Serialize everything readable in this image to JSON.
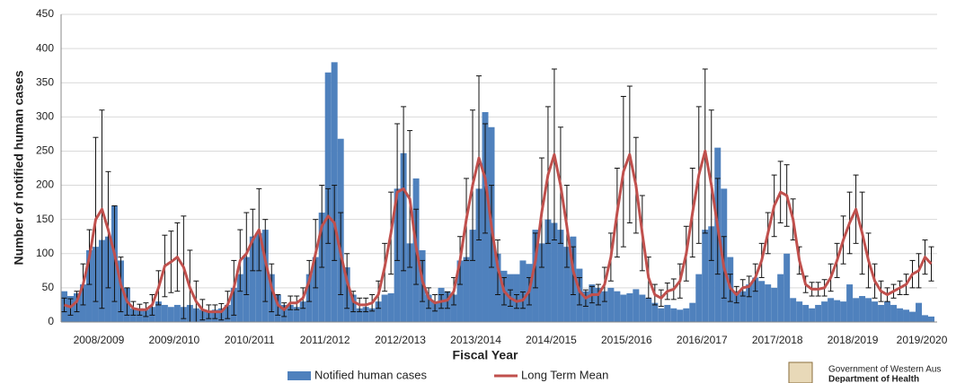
{
  "chart_data": {
    "type": "bar",
    "categories": [
      null,
      null,
      null,
      null,
      null,
      null,
      "2008/2009",
      null,
      null,
      null,
      null,
      null,
      null,
      null,
      null,
      null,
      null,
      null,
      "2009/2010",
      null,
      null,
      null,
      null,
      null,
      null,
      null,
      null,
      null,
      null,
      null,
      "2010/2011",
      null,
      null,
      null,
      null,
      null,
      null,
      null,
      null,
      null,
      null,
      null,
      "2011/2012",
      null,
      null,
      null,
      null,
      null,
      null,
      null,
      null,
      null,
      null,
      null,
      "2012/2013",
      null,
      null,
      null,
      null,
      null,
      null,
      null,
      null,
      null,
      null,
      null,
      "2013/2014",
      null,
      null,
      null,
      null,
      null,
      null,
      null,
      null,
      null,
      null,
      null,
      "2014/2015",
      null,
      null,
      null,
      null,
      null,
      null,
      null,
      null,
      null,
      null,
      null,
      "2015/2016",
      null,
      null,
      null,
      null,
      null,
      null,
      null,
      null,
      null,
      null,
      null,
      "2016/2017",
      null,
      null,
      null,
      null,
      null,
      null,
      null,
      null,
      null,
      null,
      null,
      "2017/2018",
      null,
      null,
      null,
      null,
      null,
      null,
      null,
      null,
      null,
      null,
      null,
      "2018/2019",
      null,
      null,
      null,
      null,
      null,
      null,
      null,
      null,
      null,
      null,
      "2019/2020",
      null
    ],
    "x_label": "Fiscal Year",
    "y_label": "Number of notified human cases",
    "ylim": [
      0,
      450
    ],
    "yticks": [
      0,
      50,
      100,
      150,
      200,
      250,
      300,
      350,
      400,
      450
    ],
    "grid": true,
    "legend": "bottom",
    "series": [
      {
        "name": "Notified human cases",
        "type": "bar",
        "color": "#4f81bd",
        "values": [
          45,
          38,
          42,
          55,
          105,
          110,
          120,
          125,
          170,
          90,
          50,
          20,
          20,
          18,
          22,
          30,
          25,
          22,
          25,
          22,
          25,
          20,
          18,
          15,
          18,
          20,
          25,
          50,
          70,
          95,
          125,
          130,
          135,
          70,
          40,
          25,
          25,
          22,
          30,
          70,
          95,
          160,
          365,
          380,
          268,
          80,
          40,
          20,
          22,
          20,
          30,
          40,
          42,
          195,
          247,
          115,
          210,
          105,
          40,
          30,
          50,
          45,
          40,
          90,
          95,
          135,
          195,
          307,
          285,
          100,
          75,
          70,
          70,
          90,
          85,
          135,
          115,
          150,
          145,
          135,
          110,
          125,
          78,
          45,
          55,
          50,
          45,
          50,
          45,
          40,
          42,
          48,
          40,
          35,
          28,
          20,
          25,
          20,
          18,
          20,
          28,
          70,
          135,
          140,
          255,
          195,
          95,
          45,
          45,
          55,
          65,
          60,
          55,
          50,
          70,
          100,
          35,
          30,
          25,
          20,
          25,
          30,
          35,
          32,
          30,
          55,
          35,
          38,
          35,
          30,
          25,
          30,
          25,
          20,
          18,
          15,
          28,
          10,
          8
        ]
      },
      {
        "name": "Long Term Mean",
        "type": "line",
        "color": "#c0504d",
        "values": [
          25,
          22,
          30,
          55,
          95,
          150,
          165,
          135,
          100,
          55,
          30,
          20,
          18,
          18,
          25,
          50,
          82,
          88,
          95,
          80,
          50,
          30,
          18,
          15,
          15,
          15,
          25,
          50,
          90,
          100,
          120,
          135,
          90,
          50,
          25,
          18,
          28,
          28,
          35,
          60,
          100,
          140,
          155,
          145,
          100,
          60,
          30,
          25,
          25,
          28,
          40,
          80,
          130,
          190,
          195,
          180,
          110,
          60,
          35,
          28,
          30,
          32,
          45,
          90,
          150,
          200,
          240,
          210,
          140,
          80,
          45,
          35,
          30,
          32,
          45,
          90,
          160,
          215,
          245,
          200,
          140,
          75,
          45,
          35,
          40,
          40,
          55,
          95,
          160,
          220,
          245,
          200,
          130,
          65,
          40,
          35,
          45,
          48,
          60,
          100,
          160,
          215,
          250,
          200,
          140,
          80,
          50,
          40,
          50,
          52,
          65,
          90,
          130,
          170,
          190,
          185,
          150,
          90,
          55,
          48,
          48,
          50,
          65,
          90,
          120,
          145,
          165,
          130,
          90,
          60,
          45,
          40,
          45,
          50,
          55,
          70,
          75,
          95,
          85
        ],
        "errors": [
          10,
          12,
          15,
          30,
          40,
          120,
          145,
          85,
          70,
          40,
          20,
          10,
          8,
          10,
          15,
          25,
          45,
          45,
          50,
          75,
          55,
          30,
          15,
          10,
          10,
          12,
          20,
          40,
          45,
          60,
          45,
          60,
          60,
          35,
          15,
          10,
          10,
          10,
          15,
          30,
          50,
          60,
          40,
          55,
          60,
          40,
          15,
          10,
          10,
          12,
          20,
          35,
          60,
          100,
          120,
          100,
          55,
          30,
          15,
          12,
          10,
          12,
          20,
          35,
          60,
          110,
          120,
          80,
          60,
          40,
          20,
          12,
          10,
          12,
          20,
          40,
          80,
          100,
          125,
          85,
          60,
          35,
          20,
          12,
          12,
          15,
          25,
          35,
          65,
          110,
          100,
          70,
          55,
          30,
          15,
          12,
          12,
          15,
          25,
          40,
          65,
          100,
          120,
          110,
          70,
          45,
          20,
          12,
          12,
          15,
          20,
          25,
          30,
          45,
          45,
          45,
          30,
          20,
          12,
          10,
          10,
          12,
          20,
          25,
          35,
          45,
          50,
          60,
          40,
          25,
          15,
          10,
          10,
          10,
          15,
          20,
          25,
          25,
          25
        ]
      }
    ],
    "logo": {
      "line1": "Government of Western Aus",
      "line2": "Department of Health"
    }
  }
}
